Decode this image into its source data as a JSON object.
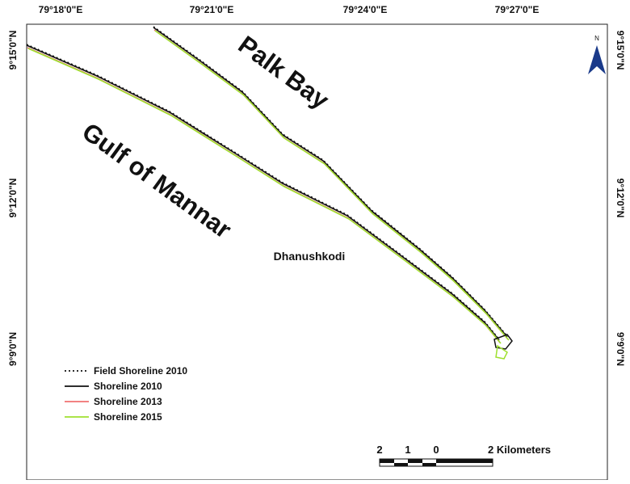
{
  "map": {
    "top_labels": [
      "79°18'0\"E",
      "79°21'0\"E",
      "79°24'0\"E",
      "79°27'0\"E"
    ],
    "left_labels": [
      "9°15'0\"N",
      "9°12'0\"N",
      "9°9'0\"N"
    ],
    "right_labels": [
      "9°15'0\"N",
      "9°12'0\"N",
      "9°9'0\"N"
    ],
    "places": {
      "palk_bay": "Palk Bay",
      "gulf_of_mannar": "Gulf of Mannar",
      "dhanushkodi": "Dhanushkodi"
    },
    "north": "N",
    "legend": [
      {
        "label": "Field Shoreline 2010",
        "color": "#111111",
        "dash": "2,3"
      },
      {
        "label": "Shoreline 2010",
        "color": "#111111",
        "dash": "none"
      },
      {
        "label": "Shoreline 2013",
        "color": "#f07070",
        "dash": "none"
      },
      {
        "label": "Shoreline 2015",
        "color": "#9fe030",
        "dash": "none"
      }
    ],
    "scale_bar": [
      "2",
      "1",
      "0",
      "2 Kilometers"
    ]
  }
}
